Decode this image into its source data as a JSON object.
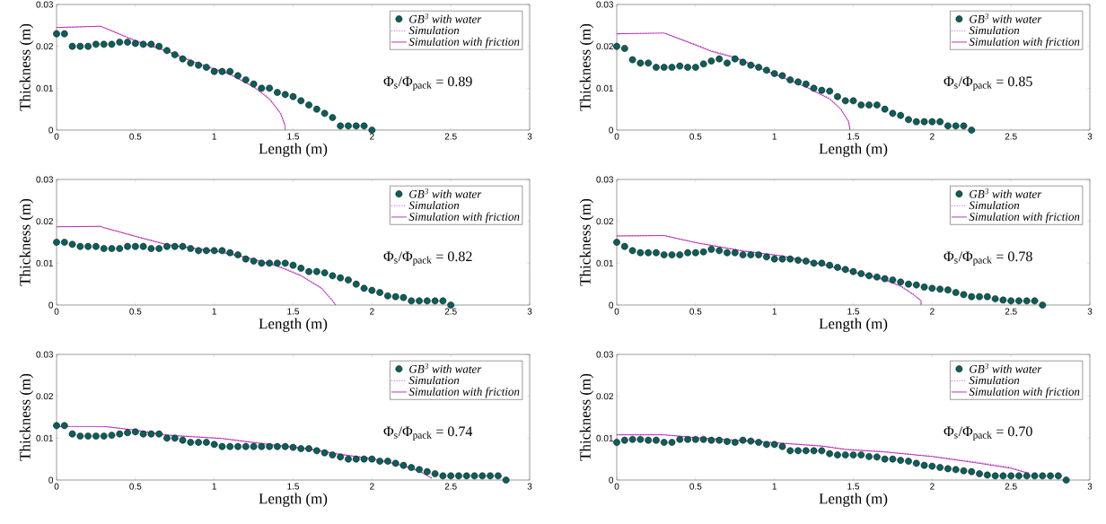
{
  "chart_data": [
    {
      "type": "line",
      "xlabel": "Length (m)",
      "ylabel": "Thickness (m)",
      "xlim": [
        0,
        3
      ],
      "ylim": [
        0,
        0.03
      ],
      "xticks": [
        0,
        0.5,
        1,
        1.5,
        2,
        2.5,
        3
      ],
      "yticks": [
        0,
        0.01,
        0.02,
        0.03
      ],
      "legend": "top right",
      "annotations": [
        "Φ$_{s}$/Φ$_{pack}$ = 0.89"
      ],
      "series": [
        {
          "name": "GB$^{3}$ with water",
          "type": "scatter",
          "marker": "circle",
          "color": "#0b5f5a",
          "x": [
            0,
            0.05,
            0.1,
            0.15,
            0.2,
            0.25,
            0.3,
            0.35,
            0.4,
            0.45,
            0.5,
            0.55,
            0.6,
            0.65,
            0.7,
            0.75,
            0.8,
            0.85,
            0.9,
            0.95,
            1,
            1.05,
            1.1,
            1.15,
            1.2,
            1.25,
            1.3,
            1.35,
            1.4,
            1.45,
            1.5,
            1.55,
            1.6,
            1.65,
            1.7,
            1.75,
            1.8,
            1.85,
            1.9,
            1.95,
            2
          ],
          "values": [
            0.023,
            0.023,
            0.02,
            0.02,
            0.02,
            0.0205,
            0.0205,
            0.0205,
            0.021,
            0.021,
            0.0207,
            0.0205,
            0.0205,
            0.02,
            0.019,
            0.018,
            0.017,
            0.016,
            0.0155,
            0.015,
            0.014,
            0.014,
            0.014,
            0.013,
            0.012,
            0.011,
            0.01,
            0.01,
            0.009,
            0.0085,
            0.008,
            0.007,
            0.006,
            0.005,
            0.004,
            0.003,
            0.001,
            0.001,
            0.001,
            0.001,
            0
          ]
        },
        {
          "name": "Simulation",
          "type": "line",
          "line_style": "dotted",
          "color": "#c010c0",
          "x": [
            0,
            0.28,
            0.3,
            0.5,
            0.7,
            0.9,
            1.1,
            1.25,
            1.35,
            1.42,
            1.45,
            1.45
          ],
          "values": [
            0.0245,
            0.0248,
            0.0245,
            0.0215,
            0.019,
            0.016,
            0.0135,
            0.0105,
            0.0077,
            0.0042,
            0.0012,
            0
          ]
        },
        {
          "name": "Simulation with friction",
          "type": "line",
          "line_style": "solid",
          "color": "#b020b0",
          "x": [
            0,
            0.28,
            0.3,
            0.5,
            0.7,
            0.9,
            1.1,
            1.25,
            1.35,
            1.42,
            1.45,
            1.45
          ],
          "values": [
            0.0245,
            0.0248,
            0.0245,
            0.0213,
            0.0188,
            0.0158,
            0.0133,
            0.0103,
            0.0074,
            0.004,
            0.001,
            0
          ]
        }
      ]
    },
    {
      "type": "line",
      "xlabel": "Length (m)",
      "ylabel": "Thickness (m)",
      "xlim": [
        0,
        3
      ],
      "ylim": [
        0,
        0.03
      ],
      "xticks": [
        0,
        0.5,
        1,
        1.5,
        2,
        2.5,
        3
      ],
      "yticks": [
        0,
        0.01,
        0.02,
        0.03
      ],
      "legend": "top right",
      "annotations": [
        "Φ$_{s}$/Φ$_{pack}$ = 0.85"
      ],
      "series": [
        {
          "name": "GB$^{3}$ with water",
          "type": "scatter",
          "marker": "circle",
          "color": "#0b5f5a",
          "x": [
            0,
            0.05,
            0.1,
            0.15,
            0.2,
            0.25,
            0.3,
            0.35,
            0.4,
            0.45,
            0.5,
            0.55,
            0.6,
            0.65,
            0.7,
            0.75,
            0.8,
            0.85,
            0.9,
            0.95,
            1,
            1.05,
            1.1,
            1.15,
            1.2,
            1.25,
            1.3,
            1.35,
            1.4,
            1.45,
            1.5,
            1.55,
            1.6,
            1.65,
            1.7,
            1.75,
            1.8,
            1.85,
            1.9,
            1.95,
            2,
            2.05,
            2.1,
            2.15,
            2.2,
            2.25
          ],
          "values": [
            0.02,
            0.0195,
            0.0168,
            0.016,
            0.016,
            0.015,
            0.015,
            0.015,
            0.0153,
            0.015,
            0.015,
            0.0158,
            0.0165,
            0.017,
            0.016,
            0.017,
            0.0162,
            0.0155,
            0.015,
            0.0143,
            0.0135,
            0.013,
            0.012,
            0.0115,
            0.011,
            0.01,
            0.0095,
            0.0093,
            0.008,
            0.007,
            0.007,
            0.006,
            0.006,
            0.006,
            0.005,
            0.004,
            0.0035,
            0.0025,
            0.002,
            0.002,
            0.002,
            0.002,
            0.001,
            0.001,
            0.001,
            0
          ]
        },
        {
          "name": "Simulation",
          "type": "line",
          "line_style": "dotted",
          "color": "#c010c0",
          "x": [
            0,
            0.3,
            0.5,
            0.6,
            0.75,
            1,
            1.2,
            1.35,
            1.42,
            1.47,
            1.48
          ],
          "values": [
            0.023,
            0.0232,
            0.0205,
            0.019,
            0.0175,
            0.0135,
            0.0105,
            0.0077,
            0.0052,
            0.0022,
            0
          ]
        },
        {
          "name": "Simulation with friction",
          "type": "line",
          "line_style": "solid",
          "color": "#b020b0",
          "x": [
            0,
            0.3,
            0.5,
            0.6,
            0.75,
            1,
            1.2,
            1.35,
            1.42,
            1.47,
            1.48
          ],
          "values": [
            0.023,
            0.0232,
            0.0203,
            0.0188,
            0.0173,
            0.0133,
            0.0103,
            0.0074,
            0.005,
            0.002,
            0
          ]
        }
      ]
    },
    {
      "type": "line",
      "xlabel": "Length (m)",
      "ylabel": "Thickness (m)",
      "xlim": [
        0,
        3
      ],
      "ylim": [
        0,
        0.03
      ],
      "xticks": [
        0,
        0.5,
        1,
        1.5,
        2,
        2.5,
        3
      ],
      "yticks": [
        0,
        0.01,
        0.02,
        0.03
      ],
      "legend": "top right",
      "annotations": [
        "Φ$_{s}$/Φ$_{pack}$ = 0.82"
      ],
      "series": [
        {
          "name": "GB$^{3}$ with water",
          "type": "scatter",
          "marker": "circle",
          "color": "#0b5f5a",
          "x": [
            0,
            0.05,
            0.1,
            0.15,
            0.2,
            0.25,
            0.3,
            0.35,
            0.4,
            0.45,
            0.5,
            0.55,
            0.6,
            0.65,
            0.7,
            0.75,
            0.8,
            0.85,
            0.9,
            0.95,
            1,
            1.05,
            1.1,
            1.15,
            1.2,
            1.25,
            1.3,
            1.35,
            1.4,
            1.45,
            1.5,
            1.55,
            1.6,
            1.65,
            1.7,
            1.75,
            1.8,
            1.85,
            1.9,
            1.95,
            2,
            2.05,
            2.1,
            2.15,
            2.2,
            2.25,
            2.3,
            2.35,
            2.4,
            2.45,
            2.5
          ],
          "values": [
            0.015,
            0.015,
            0.0145,
            0.014,
            0.014,
            0.014,
            0.0135,
            0.0135,
            0.0135,
            0.014,
            0.014,
            0.014,
            0.0135,
            0.0135,
            0.014,
            0.014,
            0.014,
            0.0135,
            0.013,
            0.013,
            0.013,
            0.013,
            0.0125,
            0.012,
            0.011,
            0.0105,
            0.01,
            0.01,
            0.01,
            0.01,
            0.0095,
            0.0088,
            0.008,
            0.008,
            0.0077,
            0.007,
            0.0065,
            0.006,
            0.005,
            0.004,
            0.0035,
            0.003,
            0.0022,
            0.002,
            0.0018,
            0.001,
            0.001,
            0.001,
            0.001,
            0.001,
            0
          ]
        },
        {
          "name": "Simulation",
          "type": "line",
          "line_style": "dotted",
          "color": "#c010c0",
          "x": [
            0,
            0.28,
            0.3,
            0.5,
            0.7,
            1,
            1.2,
            1.4,
            1.55,
            1.68,
            1.75,
            1.77
          ],
          "values": [
            0.0187,
            0.0188,
            0.0185,
            0.0165,
            0.0145,
            0.013,
            0.0115,
            0.0095,
            0.0072,
            0.0042,
            0.0012,
            0
          ]
        },
        {
          "name": "Simulation with friction",
          "type": "line",
          "line_style": "solid",
          "color": "#b020b0",
          "x": [
            0,
            0.28,
            0.3,
            0.5,
            0.7,
            1,
            1.2,
            1.4,
            1.55,
            1.68,
            1.75,
            1.77
          ],
          "values": [
            0.0187,
            0.0188,
            0.0185,
            0.0164,
            0.0144,
            0.0129,
            0.0114,
            0.0093,
            0.007,
            0.004,
            0.001,
            0
          ]
        }
      ]
    },
    {
      "type": "line",
      "xlabel": "Length (m)",
      "ylabel": "Thickness (m)",
      "xlim": [
        0,
        3
      ],
      "ylim": [
        0,
        0.03
      ],
      "xticks": [
        0,
        0.5,
        1,
        1.5,
        2,
        2.5,
        3
      ],
      "yticks": [
        0,
        0.01,
        0.02,
        0.03
      ],
      "legend": "top right",
      "annotations": [
        "Φ$_{s}$/Φ$_{pack}$ = 0.78"
      ],
      "series": [
        {
          "name": "GB$^{3}$ with water",
          "type": "scatter",
          "marker": "circle",
          "color": "#0b5f5a",
          "x": [
            0,
            0.05,
            0.1,
            0.15,
            0.2,
            0.25,
            0.3,
            0.35,
            0.4,
            0.45,
            0.5,
            0.55,
            0.6,
            0.65,
            0.7,
            0.75,
            0.8,
            0.85,
            0.9,
            0.95,
            1,
            1.05,
            1.1,
            1.15,
            1.2,
            1.25,
            1.3,
            1.35,
            1.4,
            1.45,
            1.5,
            1.55,
            1.6,
            1.65,
            1.7,
            1.75,
            1.8,
            1.85,
            1.9,
            1.95,
            2,
            2.05,
            2.1,
            2.15,
            2.2,
            2.25,
            2.3,
            2.35,
            2.4,
            2.45,
            2.5,
            2.55,
            2.6,
            2.65,
            2.7
          ],
          "values": [
            0.015,
            0.014,
            0.013,
            0.0125,
            0.0125,
            0.0125,
            0.012,
            0.012,
            0.012,
            0.0125,
            0.0125,
            0.0127,
            0.0133,
            0.013,
            0.0125,
            0.0125,
            0.012,
            0.012,
            0.012,
            0.0115,
            0.011,
            0.011,
            0.011,
            0.0107,
            0.0105,
            0.01,
            0.01,
            0.0095,
            0.009,
            0.0085,
            0.008,
            0.0075,
            0.007,
            0.0067,
            0.0063,
            0.006,
            0.0055,
            0.005,
            0.0048,
            0.0043,
            0.004,
            0.0038,
            0.0036,
            0.003,
            0.0025,
            0.002,
            0.002,
            0.002,
            0.0015,
            0.0012,
            0.001,
            0.001,
            0.001,
            0.001,
            0
          ]
        },
        {
          "name": "Simulation",
          "type": "line",
          "line_style": "dotted",
          "color": "#c010c0",
          "x": [
            0,
            0.3,
            0.5,
            0.8,
            1.05,
            1.3,
            1.5,
            1.7,
            1.8,
            1.88,
            1.93,
            1.93
          ],
          "values": [
            0.0165,
            0.0166,
            0.015,
            0.013,
            0.0118,
            0.0098,
            0.008,
            0.0062,
            0.0047,
            0.0027,
            0.0012,
            0
          ]
        },
        {
          "name": "Simulation with friction",
          "type": "line",
          "line_style": "solid",
          "color": "#b020b0",
          "x": [
            0,
            0.3,
            0.5,
            0.8,
            1.05,
            1.3,
            1.5,
            1.7,
            1.8,
            1.88,
            1.93,
            1.93
          ],
          "values": [
            0.0165,
            0.0166,
            0.0149,
            0.0129,
            0.0117,
            0.0097,
            0.0079,
            0.006,
            0.0045,
            0.0025,
            0.001,
            0
          ]
        }
      ]
    },
    {
      "type": "line",
      "xlabel": "Length (m)",
      "ylabel": "Thickness (m)",
      "xlim": [
        0,
        3
      ],
      "ylim": [
        0,
        0.03
      ],
      "xticks": [
        0,
        0.5,
        1,
        1.5,
        2,
        2.5,
        3
      ],
      "yticks": [
        0,
        0.01,
        0.02,
        0.03
      ],
      "legend": "top right",
      "annotations": [
        "Φ$_{s}$/Φ$_{pack}$ = 0.74"
      ],
      "series": [
        {
          "name": "GB$^{3}$ with water",
          "type": "scatter",
          "marker": "circle",
          "color": "#0b5f5a",
          "x": [
            0,
            0.05,
            0.1,
            0.15,
            0.2,
            0.25,
            0.3,
            0.35,
            0.4,
            0.45,
            0.5,
            0.55,
            0.6,
            0.65,
            0.7,
            0.75,
            0.8,
            0.85,
            0.9,
            0.95,
            1,
            1.05,
            1.1,
            1.15,
            1.2,
            1.25,
            1.3,
            1.35,
            1.4,
            1.45,
            1.5,
            1.55,
            1.6,
            1.65,
            1.7,
            1.75,
            1.8,
            1.85,
            1.9,
            1.95,
            2,
            2.05,
            2.1,
            2.15,
            2.2,
            2.25,
            2.3,
            2.35,
            2.4,
            2.45,
            2.5,
            2.55,
            2.6,
            2.65,
            2.7,
            2.75,
            2.8,
            2.85
          ],
          "values": [
            0.013,
            0.013,
            0.011,
            0.0105,
            0.0105,
            0.0105,
            0.0105,
            0.0107,
            0.011,
            0.0113,
            0.0115,
            0.011,
            0.011,
            0.011,
            0.01,
            0.01,
            0.0095,
            0.009,
            0.009,
            0.009,
            0.0085,
            0.008,
            0.008,
            0.008,
            0.008,
            0.008,
            0.008,
            0.008,
            0.008,
            0.008,
            0.0078,
            0.0075,
            0.0075,
            0.007,
            0.0065,
            0.006,
            0.0055,
            0.005,
            0.005,
            0.005,
            0.005,
            0.0045,
            0.0045,
            0.004,
            0.0035,
            0.003,
            0.0025,
            0.002,
            0.0015,
            0.001,
            0.001,
            0.001,
            0.001,
            0.001,
            0.001,
            0.001,
            0.001,
            0
          ]
        },
        {
          "name": "Simulation",
          "type": "line",
          "line_style": "dotted",
          "color": "#c010c0",
          "x": [
            0,
            0.3,
            0.5,
            0.7,
            1.05,
            1.3,
            1.6,
            1.8,
            2,
            2.2,
            2.3,
            2.38
          ],
          "values": [
            0.0128,
            0.0128,
            0.012,
            0.0108,
            0.01,
            0.0088,
            0.0075,
            0.0062,
            0.0052,
            0.0035,
            0.0022,
            0.0005
          ]
        },
        {
          "name": "Simulation with friction",
          "type": "line",
          "line_style": "solid",
          "color": "#b020b0",
          "x": [
            0,
            0.3,
            0.5,
            0.7,
            1.05,
            1.3,
            1.6,
            1.8,
            2,
            2.2,
            2.3,
            2.38
          ],
          "values": [
            0.0128,
            0.0128,
            0.0119,
            0.0107,
            0.0099,
            0.0087,
            0.0074,
            0.0061,
            0.0051,
            0.0034,
            0.0021,
            0.0004
          ]
        }
      ]
    },
    {
      "type": "line",
      "xlabel": "Length (m)",
      "ylabel": "Thickness (m)",
      "xlim": [
        0,
        3
      ],
      "ylim": [
        0,
        0.03
      ],
      "xticks": [
        0,
        0.5,
        1,
        1.5,
        2,
        2.5,
        3
      ],
      "yticks": [
        0,
        0.01,
        0.02,
        0.03
      ],
      "legend": "top right",
      "annotations": [
        "Φ$_{s}$/Φ$_{pack}$ = 0.70"
      ],
      "series": [
        {
          "name": "GB$^{3}$ with water",
          "type": "scatter",
          "marker": "circle",
          "color": "#0b5f5a",
          "x": [
            0,
            0.05,
            0.1,
            0.15,
            0.2,
            0.25,
            0.3,
            0.35,
            0.4,
            0.45,
            0.5,
            0.55,
            0.6,
            0.65,
            0.7,
            0.75,
            0.8,
            0.85,
            0.9,
            0.95,
            1,
            1.05,
            1.1,
            1.15,
            1.2,
            1.25,
            1.3,
            1.35,
            1.4,
            1.45,
            1.5,
            1.55,
            1.6,
            1.65,
            1.7,
            1.75,
            1.8,
            1.85,
            1.9,
            1.95,
            2,
            2.05,
            2.1,
            2.15,
            2.2,
            2.25,
            2.3,
            2.35,
            2.4,
            2.45,
            2.5,
            2.55,
            2.6,
            2.65,
            2.7,
            2.75,
            2.8,
            2.85
          ],
          "values": [
            0.009,
            0.0095,
            0.0097,
            0.0097,
            0.0095,
            0.0095,
            0.009,
            0.009,
            0.0097,
            0.0097,
            0.0097,
            0.0097,
            0.0095,
            0.0095,
            0.0092,
            0.009,
            0.0095,
            0.0093,
            0.009,
            0.0085,
            0.0085,
            0.008,
            0.007,
            0.007,
            0.007,
            0.007,
            0.007,
            0.0063,
            0.006,
            0.006,
            0.006,
            0.006,
            0.0056,
            0.0055,
            0.005,
            0.005,
            0.0047,
            0.0045,
            0.004,
            0.0035,
            0.0033,
            0.003,
            0.0027,
            0.0025,
            0.0022,
            0.002,
            0.0015,
            0.0012,
            0.001,
            0.001,
            0.001,
            0.001,
            0.001,
            0.001,
            0.001,
            0.001,
            0.001,
            0
          ]
        },
        {
          "name": "Simulation",
          "type": "line",
          "line_style": "dotted",
          "color": "#c010c0",
          "x": [
            0,
            0.3,
            0.5,
            1,
            1.3,
            1.45,
            1.7,
            2,
            2.3,
            2.5,
            2.62
          ],
          "values": [
            0.0108,
            0.0108,
            0.0102,
            0.009,
            0.0082,
            0.0074,
            0.0068,
            0.0057,
            0.0042,
            0.003,
            0.0017
          ]
        },
        {
          "name": "Simulation with friction",
          "type": "line",
          "line_style": "solid",
          "color": "#b020b0",
          "x": [
            0,
            0.3,
            0.5,
            1,
            1.3,
            1.45,
            1.7,
            2,
            2.3,
            2.5,
            2.6
          ],
          "values": [
            0.0108,
            0.0108,
            0.0101,
            0.0089,
            0.0081,
            0.0073,
            0.0067,
            0.0056,
            0.004,
            0.0028,
            0.0017
          ]
        }
      ]
    }
  ]
}
